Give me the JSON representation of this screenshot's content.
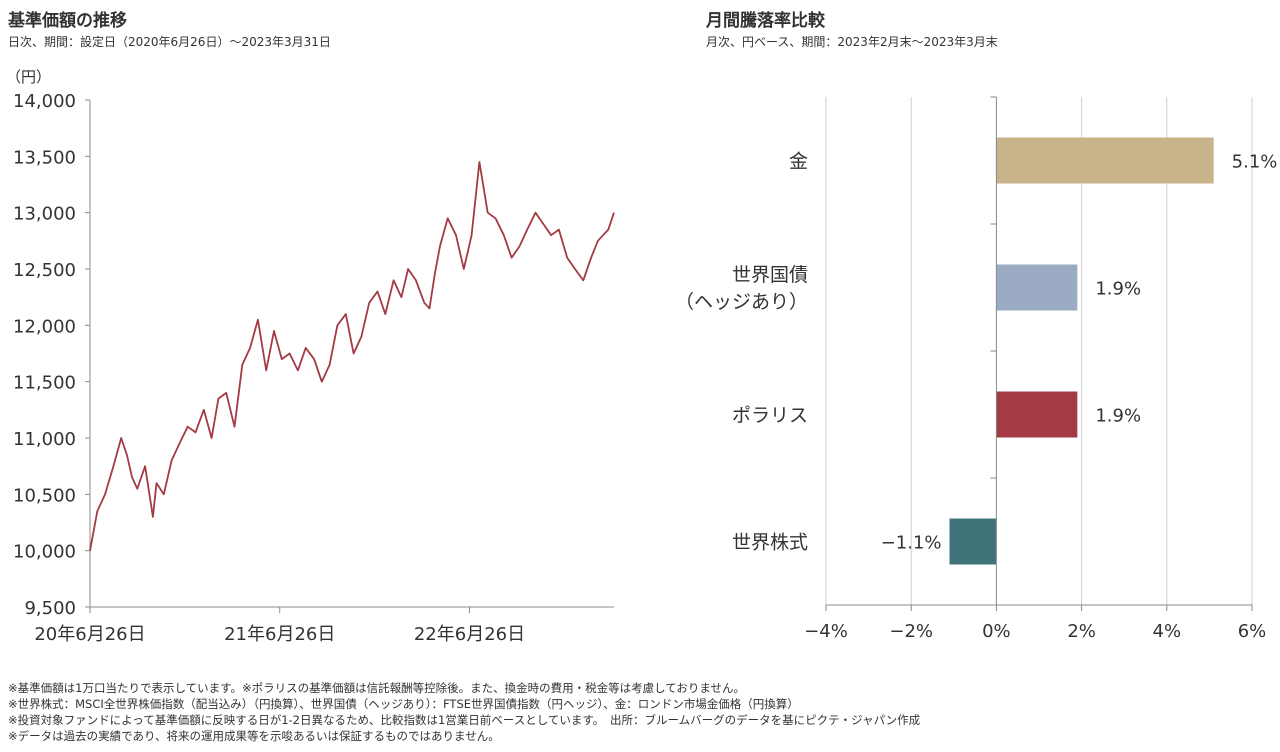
{
  "left_panel": {
    "title": "基準価額の推移",
    "subtitle": "日次、期間：設定日（2020年6月26日）〜2023年3月31日",
    "unit": "（円）"
  },
  "right_panel": {
    "title": "月間騰落率比較",
    "subtitle": "月次、円ベース、期間：2023年2月末〜2023年3月末"
  },
  "notes": [
    "※基準価額は1万口当たりで表示しています。※ポラリスの基準価額は信託報酬等控除後。また、換金時の費用・税金等は考慮しておりません。",
    "※世界株式：MSCI全世界株価指数（配当込み）（円換算）、世界国債（ヘッジあり）：FTSE世界国債指数（円ヘッジ）、金：ロンドン市場金価格（円換算）",
    "※投資対象ファンドによって基準価額に反映する日が1-2日異なるため、比較指数は1営業日前ベースとしています。　出所：ブルームバーグのデータを基にピクテ・ジャパン作成",
    "※データは過去の実績であり、将来の運用成果等を示唆あるいは保証するものではありません。"
  ],
  "chart_data": [
    {
      "type": "line",
      "title": "基準価額の推移",
      "ylabel": "（円）",
      "ylim": [
        9500,
        14000
      ],
      "yticks": [
        9500,
        10000,
        10500,
        11000,
        11500,
        12000,
        12500,
        13000,
        13500,
        14000
      ],
      "ytick_labels": [
        "9,500",
        "10,000",
        "10,500",
        "11,000",
        "11,500",
        "12,000",
        "12,500",
        "13,000",
        "13,500",
        "14,000"
      ],
      "xlim": [
        "2020-06-26",
        "2023-03-31"
      ],
      "xticks": [
        "2020-06-26",
        "2021-06-26",
        "2022-06-26"
      ],
      "xtick_labels": [
        "20年6月26日",
        "21年6月26日",
        "22年6月26日"
      ],
      "grid": false,
      "color": "#a33a44",
      "series": [
        {
          "x": [
            "2020-06-26",
            "2020-07-10",
            "2020-07-25",
            "2020-08-10",
            "2020-08-25",
            "2020-09-05",
            "2020-09-15",
            "2020-09-25",
            "2020-10-10",
            "2020-10-25",
            "2020-11-01",
            "2020-11-15",
            "2020-11-30",
            "2020-12-15",
            "2020-12-31",
            "2021-01-15",
            "2021-01-31",
            "2021-02-15",
            "2021-02-28",
            "2021-03-15",
            "2021-03-31",
            "2021-04-15",
            "2021-04-30",
            "2021-05-15",
            "2021-05-31",
            "2021-06-15",
            "2021-06-30",
            "2021-07-15",
            "2021-07-31",
            "2021-08-15",
            "2021-08-31",
            "2021-09-15",
            "2021-09-30",
            "2021-10-15",
            "2021-10-31",
            "2021-11-15",
            "2021-11-30",
            "2021-12-15",
            "2021-12-31",
            "2022-01-15",
            "2022-01-31",
            "2022-02-15",
            "2022-02-28",
            "2022-03-15",
            "2022-03-31",
            "2022-04-10",
            "2022-04-20",
            "2022-04-30",
            "2022-05-15",
            "2022-05-31",
            "2022-06-15",
            "2022-06-30",
            "2022-07-15",
            "2022-07-31",
            "2022-08-15",
            "2022-08-31",
            "2022-09-15",
            "2022-09-30",
            "2022-10-15",
            "2022-10-31",
            "2022-11-15",
            "2022-11-30",
            "2022-12-15",
            "2022-12-31",
            "2023-01-15",
            "2023-01-31",
            "2023-02-15",
            "2023-02-28",
            "2023-03-10",
            "2023-03-20",
            "2023-03-31"
          ],
          "y": [
            10000,
            10350,
            10500,
            10750,
            11000,
            10850,
            10650,
            10550,
            10750,
            10300,
            10600,
            10500,
            10800,
            10950,
            11100,
            11050,
            11250,
            11000,
            11350,
            11400,
            11100,
            11650,
            11800,
            12050,
            11600,
            11950,
            11700,
            11750,
            11600,
            11800,
            11700,
            11500,
            11650,
            12000,
            12100,
            11750,
            11900,
            12200,
            12300,
            12100,
            12400,
            12250,
            12500,
            12400,
            12200,
            12150,
            12450,
            12700,
            12950,
            12800,
            12500,
            12800,
            13450,
            13000,
            12950,
            12800,
            12600,
            12700,
            12850,
            13000,
            12900,
            12800,
            12850,
            12600,
            12500,
            12400,
            12600,
            12750,
            12800,
            12850,
            13000
          ]
        }
      ]
    },
    {
      "type": "bar",
      "orientation": "horizontal",
      "title": "月間騰落率比較",
      "categories": [
        "金",
        "世界国債（ヘッジあり）",
        "ポラリス",
        "世界株式"
      ],
      "category_label_lines": [
        [
          "金"
        ],
        [
          "世界国債",
          "（ヘッジあり）"
        ],
        [
          "ポラリス"
        ],
        [
          "世界株式"
        ]
      ],
      "values": [
        5.1,
        1.9,
        1.9,
        -1.1
      ],
      "value_labels": [
        "5.1%",
        "1.9%",
        "1.9%",
        "−1.1%"
      ],
      "colors": [
        "#c9b38a",
        "#9aabc3",
        "#a33a44",
        "#3f7379"
      ],
      "xlim": [
        -4,
        6
      ],
      "xticks": [
        -4,
        -2,
        0,
        2,
        4,
        6
      ],
      "xtick_labels": [
        "−4%",
        "−2%",
        "0%",
        "2%",
        "4%",
        "6%"
      ],
      "grid": true
    }
  ]
}
